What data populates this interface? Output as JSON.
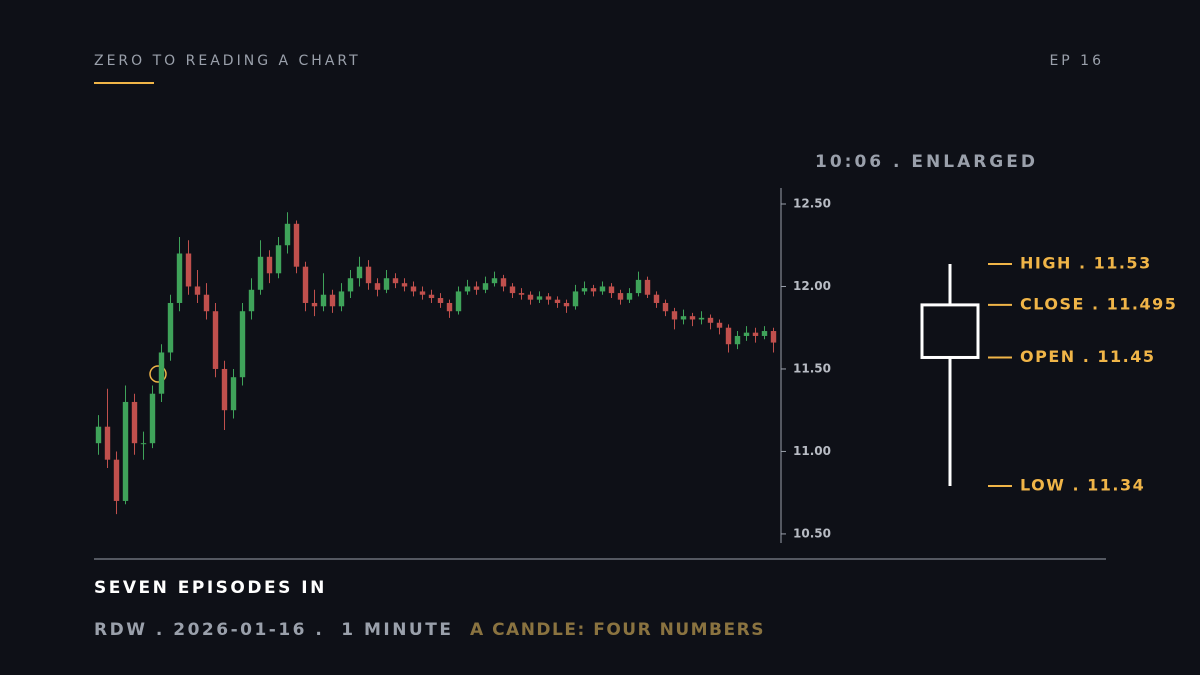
{
  "header": {
    "title": "ZERO TO READING A CHART",
    "episode": "EP 16"
  },
  "footer": {
    "title": "SEVEN EPISODES IN",
    "meta": "RDW . 2026-01-16 .  1 MINUTE",
    "topic": "A CANDLE: FOUR NUMBERS"
  },
  "chart_data": {
    "type": "candlestick",
    "up_color": "#3fa35a",
    "down_color": "#c0504d",
    "ylim": [
      10.445,
      12.597
    ],
    "yticks": [
      {
        "value": 10.5,
        "label": "10.50"
      },
      {
        "value": 11,
        "label": "11.00"
      },
      {
        "value": 11.5,
        "label": "11.50"
      },
      {
        "value": 12,
        "label": "12.00"
      },
      {
        "value": 12.5,
        "label": "12.50"
      }
    ],
    "open": [
      11.05,
      11.15,
      10.95,
      10.7,
      11.3,
      11.05,
      11.05,
      11.35,
      11.6,
      11.9,
      12.2,
      12.0,
      11.95,
      11.85,
      11.5,
      11.25,
      11.45,
      11.85,
      11.98,
      12.18,
      12.08,
      12.25,
      12.38,
      12.12,
      11.9,
      11.88,
      11.95,
      11.88,
      11.97,
      12.05,
      12.12,
      12.02,
      11.98,
      12.05,
      12.02,
      12.0,
      11.97,
      11.95,
      11.93,
      11.9,
      11.85,
      11.97,
      12.0,
      11.98,
      12.02,
      12.05,
      12.0,
      11.96,
      11.95,
      11.92,
      11.94,
      11.92,
      11.9,
      11.88,
      11.97,
      11.99,
      11.97,
      12.0,
      11.96,
      11.92,
      11.96,
      12.04,
      11.95,
      11.9,
      11.85,
      11.8,
      11.82,
      11.8,
      11.81,
      11.78,
      11.75,
      11.65,
      11.7,
      11.72,
      11.7,
      11.73
    ],
    "high": [
      11.22,
      11.38,
      11.0,
      11.4,
      11.35,
      11.12,
      11.4,
      11.65,
      11.95,
      12.3,
      12.28,
      12.1,
      12.02,
      11.9,
      11.55,
      11.5,
      11.9,
      12.05,
      12.28,
      12.22,
      12.3,
      12.45,
      12.4,
      12.15,
      11.98,
      12.08,
      11.98,
      12.02,
      12.1,
      12.18,
      12.16,
      12.05,
      12.1,
      12.08,
      12.05,
      12.03,
      12.0,
      11.98,
      11.96,
      11.92,
      12.0,
      12.04,
      12.03,
      12.06,
      12.09,
      12.07,
      12.02,
      11.99,
      11.97,
      11.97,
      11.96,
      11.94,
      11.92,
      12.01,
      12.03,
      12.01,
      12.03,
      12.02,
      11.98,
      11.99,
      12.09,
      12.06,
      11.97,
      11.92,
      11.87,
      11.86,
      11.84,
      11.85,
      11.83,
      11.8,
      11.77,
      11.73,
      11.76,
      11.75,
      11.76,
      11.75
    ],
    "low": [
      10.98,
      10.9,
      10.62,
      10.68,
      10.98,
      10.95,
      11.02,
      11.3,
      11.55,
      11.85,
      11.95,
      11.9,
      11.8,
      11.45,
      11.13,
      11.2,
      11.4,
      11.8,
      11.95,
      12.02,
      12.05,
      12.2,
      12.08,
      11.85,
      11.82,
      11.85,
      11.84,
      11.85,
      11.93,
      12.0,
      11.98,
      11.94,
      11.96,
      11.99,
      11.97,
      11.94,
      11.92,
      11.9,
      11.87,
      11.81,
      11.83,
      11.95,
      11.95,
      11.96,
      12.0,
      11.97,
      11.93,
      11.92,
      11.89,
      11.9,
      11.89,
      11.87,
      11.84,
      11.86,
      11.95,
      11.94,
      11.95,
      11.93,
      11.89,
      11.9,
      11.94,
      11.93,
      11.87,
      11.82,
      11.74,
      11.77,
      11.76,
      11.77,
      11.74,
      11.71,
      11.6,
      11.62,
      11.67,
      11.66,
      11.68,
      11.6
    ],
    "close": [
      11.15,
      10.95,
      10.7,
      11.3,
      11.05,
      11.05,
      11.35,
      11.6,
      11.9,
      12.2,
      12.0,
      11.95,
      11.85,
      11.5,
      11.25,
      11.45,
      11.85,
      11.98,
      12.18,
      12.08,
      12.25,
      12.38,
      12.12,
      11.9,
      11.88,
      11.95,
      11.88,
      11.97,
      12.05,
      12.12,
      12.02,
      11.98,
      12.05,
      12.02,
      12.0,
      11.97,
      11.95,
      11.93,
      11.9,
      11.85,
      11.97,
      12.0,
      11.98,
      12.02,
      12.05,
      12.0,
      11.96,
      11.95,
      11.92,
      11.94,
      11.92,
      11.9,
      11.88,
      11.97,
      11.99,
      11.97,
      12.0,
      11.96,
      11.92,
      11.96,
      12.04,
      11.95,
      11.9,
      11.85,
      11.8,
      11.82,
      11.8,
      11.81,
      11.78,
      11.75,
      11.65,
      11.7,
      11.72,
      11.7,
      11.73,
      11.66
    ],
    "enlarged": {
      "title": "10:06 . ENLARGED",
      "color": "#ffffff",
      "label_color": "#f0b548",
      "open": 11.45,
      "high": 11.53,
      "low": 11.34,
      "close": 11.495,
      "labels": {
        "high": "HIGH . 11.53",
        "close": "CLOSE . 11.495",
        "open": "OPEN . 11.45",
        "low": "LOW . 11.34"
      }
    }
  }
}
